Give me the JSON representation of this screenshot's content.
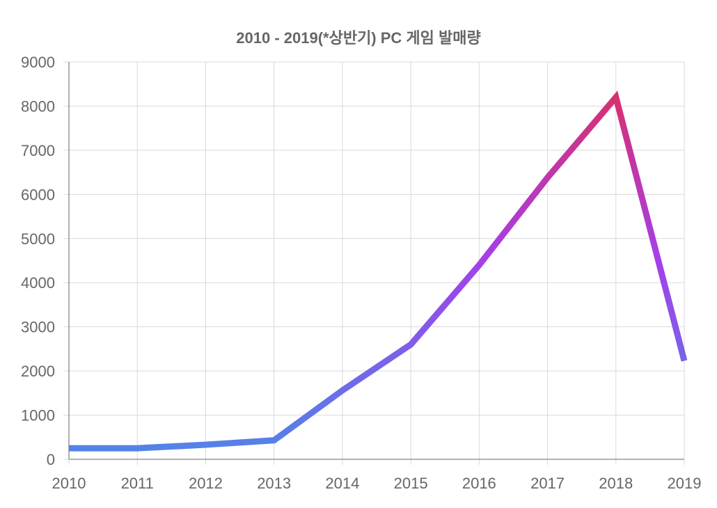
{
  "chart_data": {
    "type": "line",
    "title": "2010 - 2019(*상반기) PC 게임 발매량",
    "x": [
      "2010",
      "2011",
      "2012",
      "2013",
      "2014",
      "2015",
      "2016",
      "2017",
      "2018",
      "2019"
    ],
    "series": [
      {
        "values": [
          250,
          250,
          330,
          430,
          1560,
          2600,
          4400,
          6380,
          8200,
          2230
        ]
      }
    ],
    "yticks": [
      0,
      1000,
      2000,
      3000,
      4000,
      5000,
      6000,
      7000,
      8000,
      9000
    ],
    "ylim": [
      0,
      9000
    ],
    "grid": true,
    "line_gradient": [
      "#4f86e8",
      "#a63ee8",
      "#d8306c"
    ],
    "grid_color": "#d9d9d9",
    "axis_color": "#999999",
    "text_color": "#666666"
  }
}
